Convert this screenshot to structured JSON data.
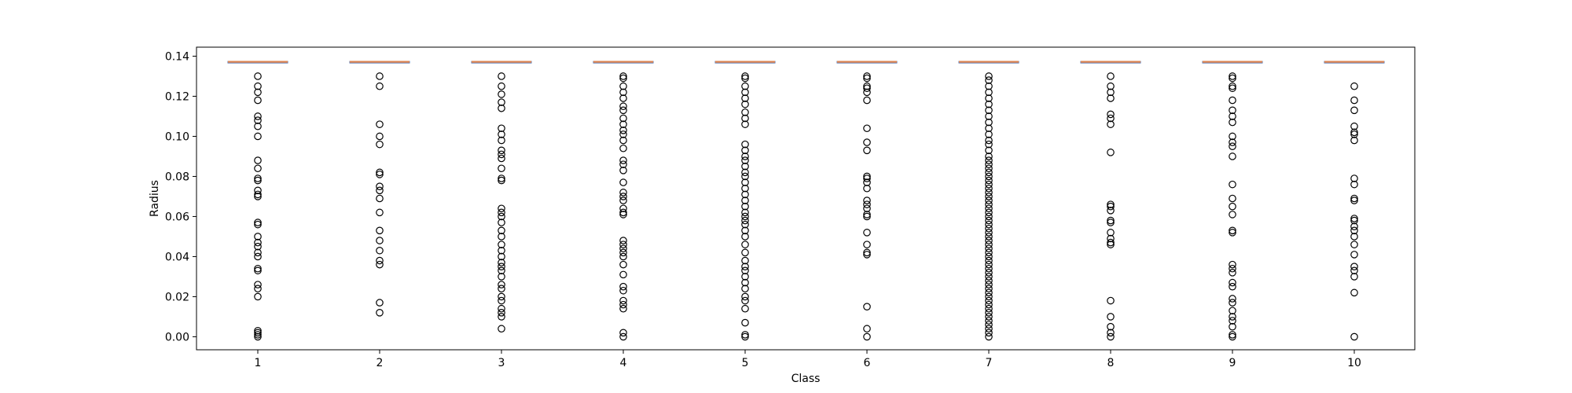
{
  "chart_data": {
    "type": "boxplot",
    "xlabel": "Class",
    "ylabel": "Radius",
    "categories": [
      "1",
      "2",
      "3",
      "4",
      "5",
      "6",
      "7",
      "8",
      "9",
      "10"
    ],
    "ylim": [
      -0.0065,
      0.1445
    ],
    "yticks": [
      {
        "value": 0.0,
        "label": "0.00"
      },
      {
        "value": 0.02,
        "label": "0.02"
      },
      {
        "value": 0.04,
        "label": "0.04"
      },
      {
        "value": 0.06,
        "label": "0.06"
      },
      {
        "value": 0.08,
        "label": "0.08"
      },
      {
        "value": 0.1,
        "label": "0.10"
      },
      {
        "value": 0.12,
        "label": "0.12"
      },
      {
        "value": 0.14,
        "label": "0.14"
      }
    ],
    "grid": false,
    "box_color": "#4c72b0",
    "median_color": "#dd8452",
    "flier_color": "#000000",
    "boxes": [
      {
        "class": "1",
        "q1": 0.1372,
        "median": 0.1372,
        "q3": 0.1372,
        "whisker_low": 0.1372,
        "whisker_high": 0.1372,
        "outliers": [
          0.13,
          0.125,
          0.122,
          0.118,
          0.11,
          0.108,
          0.105,
          0.1,
          0.088,
          0.084,
          0.079,
          0.078,
          0.073,
          0.071,
          0.07,
          0.057,
          0.056,
          0.05,
          0.047,
          0.045,
          0.042,
          0.04,
          0.034,
          0.033,
          0.026,
          0.024,
          0.02,
          0.003,
          0.002,
          0.001,
          0.0
        ]
      },
      {
        "class": "2",
        "q1": 0.1372,
        "median": 0.1372,
        "q3": 0.1372,
        "whisker_low": 0.1372,
        "whisker_high": 0.1372,
        "outliers": [
          0.13,
          0.125,
          0.106,
          0.1,
          0.096,
          0.082,
          0.081,
          0.075,
          0.073,
          0.069,
          0.062,
          0.053,
          0.048,
          0.043,
          0.038,
          0.036,
          0.017,
          0.012
        ]
      },
      {
        "class": "3",
        "q1": 0.1372,
        "median": 0.1372,
        "q3": 0.1372,
        "whisker_low": 0.1372,
        "whisker_high": 0.1372,
        "outliers": [
          0.13,
          0.125,
          0.121,
          0.117,
          0.114,
          0.104,
          0.101,
          0.098,
          0.093,
          0.091,
          0.089,
          0.084,
          0.079,
          0.078,
          0.064,
          0.062,
          0.06,
          0.057,
          0.053,
          0.05,
          0.046,
          0.043,
          0.04,
          0.037,
          0.035,
          0.033,
          0.03,
          0.026,
          0.024,
          0.02,
          0.018,
          0.014,
          0.012,
          0.01,
          0.004
        ]
      },
      {
        "class": "4",
        "q1": 0.1372,
        "median": 0.1372,
        "q3": 0.1372,
        "whisker_low": 0.1372,
        "whisker_high": 0.1372,
        "outliers": [
          0.13,
          0.129,
          0.125,
          0.122,
          0.119,
          0.115,
          0.113,
          0.109,
          0.106,
          0.103,
          0.101,
          0.098,
          0.094,
          0.088,
          0.086,
          0.083,
          0.077,
          0.072,
          0.07,
          0.068,
          0.064,
          0.062,
          0.061,
          0.048,
          0.046,
          0.044,
          0.042,
          0.04,
          0.036,
          0.031,
          0.025,
          0.023,
          0.018,
          0.016,
          0.014,
          0.002,
          0.0
        ]
      },
      {
        "class": "5",
        "q1": 0.1372,
        "median": 0.1372,
        "q3": 0.1372,
        "whisker_low": 0.1372,
        "whisker_high": 0.1372,
        "outliers": [
          0.13,
          0.129,
          0.125,
          0.122,
          0.119,
          0.116,
          0.112,
          0.109,
          0.106,
          0.096,
          0.093,
          0.09,
          0.088,
          0.085,
          0.082,
          0.08,
          0.077,
          0.074,
          0.071,
          0.068,
          0.065,
          0.062,
          0.06,
          0.058,
          0.056,
          0.053,
          0.05,
          0.046,
          0.042,
          0.038,
          0.035,
          0.033,
          0.03,
          0.027,
          0.024,
          0.02,
          0.018,
          0.014,
          0.007,
          0.001,
          0.0
        ]
      },
      {
        "class": "6",
        "q1": 0.1372,
        "median": 0.1372,
        "q3": 0.1372,
        "whisker_low": 0.1372,
        "whisker_high": 0.1372,
        "outliers": [
          0.13,
          0.129,
          0.125,
          0.124,
          0.122,
          0.118,
          0.104,
          0.097,
          0.093,
          0.08,
          0.079,
          0.077,
          0.074,
          0.068,
          0.066,
          0.064,
          0.061,
          0.06,
          0.052,
          0.046,
          0.042,
          0.041,
          0.015,
          0.004,
          0.0
        ]
      },
      {
        "class": "7",
        "q1": 0.1372,
        "median": 0.1372,
        "q3": 0.1372,
        "whisker_low": 0.1372,
        "whisker_high": 0.1372,
        "outliers": [
          0.13,
          0.128,
          0.125,
          0.122,
          0.119,
          0.116,
          0.113,
          0.11,
          0.107,
          0.104,
          0.101,
          0.098,
          0.096,
          0.093,
          0.09,
          0.088,
          0.086,
          0.084,
          0.082,
          0.08,
          0.078,
          0.076,
          0.074,
          0.072,
          0.07,
          0.068,
          0.066,
          0.064,
          0.062,
          0.06,
          0.058,
          0.056,
          0.054,
          0.052,
          0.05,
          0.048,
          0.046,
          0.044,
          0.042,
          0.04,
          0.038,
          0.036,
          0.034,
          0.032,
          0.03,
          0.028,
          0.026,
          0.024,
          0.022,
          0.02,
          0.018,
          0.016,
          0.014,
          0.012,
          0.01,
          0.008,
          0.006,
          0.004,
          0.002,
          0.0
        ]
      },
      {
        "class": "8",
        "q1": 0.1372,
        "median": 0.1372,
        "q3": 0.1372,
        "whisker_low": 0.1372,
        "whisker_high": 0.1372,
        "outliers": [
          0.13,
          0.125,
          0.122,
          0.119,
          0.111,
          0.109,
          0.106,
          0.092,
          0.066,
          0.065,
          0.063,
          0.058,
          0.057,
          0.052,
          0.049,
          0.047,
          0.046,
          0.018,
          0.01,
          0.005,
          0.002,
          0.0
        ]
      },
      {
        "class": "9",
        "q1": 0.1372,
        "median": 0.1372,
        "q3": 0.1372,
        "whisker_low": 0.1372,
        "whisker_high": 0.1372,
        "outliers": [
          0.13,
          0.129,
          0.125,
          0.124,
          0.118,
          0.113,
          0.11,
          0.107,
          0.1,
          0.097,
          0.095,
          0.09,
          0.076,
          0.069,
          0.065,
          0.061,
          0.053,
          0.052,
          0.036,
          0.034,
          0.032,
          0.027,
          0.025,
          0.019,
          0.017,
          0.013,
          0.01,
          0.008,
          0.005,
          0.001,
          0.0
        ]
      },
      {
        "class": "10",
        "q1": 0.1372,
        "median": 0.1372,
        "q3": 0.1372,
        "whisker_low": 0.1372,
        "whisker_high": 0.1372,
        "outliers": [
          0.125,
          0.118,
          0.113,
          0.105,
          0.102,
          0.101,
          0.098,
          0.079,
          0.076,
          0.069,
          0.068,
          0.059,
          0.058,
          0.055,
          0.053,
          0.05,
          0.046,
          0.041,
          0.035,
          0.033,
          0.03,
          0.022,
          0.0
        ]
      }
    ]
  }
}
